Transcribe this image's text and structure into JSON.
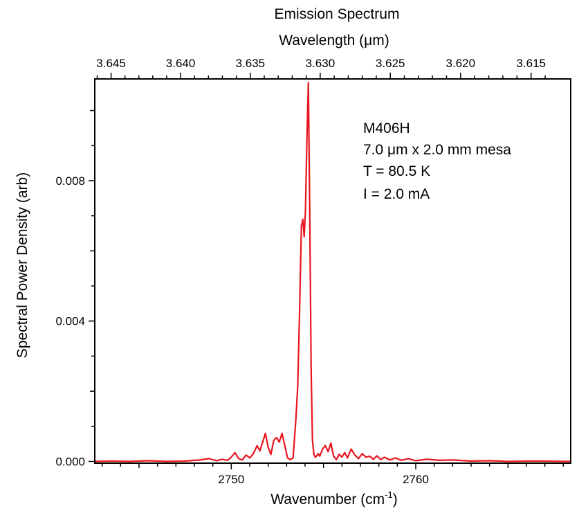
{
  "chart_data": {
    "type": "line",
    "title": "Emission Spectrum",
    "xlabel": "Wavenumber (cm",
    "xlabel_sup": "-1",
    "xlabel_close": ")",
    "ylabel": "Spectral Power Density (arb)",
    "top_xlabel": "Wavelength (μm)",
    "xlim": [
      2742.6,
      2768.4
    ],
    "ylim": [
      -5e-05,
      0.0109
    ],
    "x_ticks": [
      {
        "value": 2750,
        "label": "2750"
      },
      {
        "value": 2760,
        "label": "2760"
      }
    ],
    "y_ticks": [
      {
        "value": 0.0,
        "label": "0.000"
      },
      {
        "value": 0.004,
        "label": "0.004"
      },
      {
        "value": 0.008,
        "label": "0.008"
      }
    ],
    "top_ticks": [
      {
        "value": 3.645,
        "label": "3.645"
      },
      {
        "value": 3.64,
        "label": "3.640"
      },
      {
        "value": 3.635,
        "label": "3.635"
      },
      {
        "value": 3.63,
        "label": "3.630"
      },
      {
        "value": 3.625,
        "label": "3.625"
      },
      {
        "value": 3.62,
        "label": "3.620"
      },
      {
        "value": 3.615,
        "label": "3.615"
      }
    ],
    "annotations": [
      "M406H",
      "7.0 μm x 2.0 mm mesa",
      "T = 80.5 K",
      "I = 2.0 mA"
    ],
    "series": [
      {
        "color": "#e8141e",
        "x": [
          2742.6,
          2743.5,
          2744.5,
          2745.5,
          2746.5,
          2747.5,
          2748.3,
          2748.8,
          2749.2,
          2749.5,
          2749.8,
          2750.0,
          2750.2,
          2750.4,
          2750.6,
          2750.8,
          2751.0,
          2751.2,
          2751.4,
          2751.55,
          2751.7,
          2751.85,
          2752.0,
          2752.15,
          2752.3,
          2752.45,
          2752.6,
          2752.75,
          2752.9,
          2753.05,
          2753.2,
          2753.35,
          2753.5,
          2753.6,
          2753.7,
          2753.8,
          2753.88,
          2753.95,
          2754.02,
          2754.1,
          2754.18,
          2754.25,
          2754.33,
          2754.4,
          2754.48,
          2754.55,
          2754.62,
          2754.7,
          2754.8,
          2754.95,
          2755.1,
          2755.25,
          2755.4,
          2755.55,
          2755.7,
          2755.85,
          2756.0,
          2756.15,
          2756.3,
          2756.5,
          2756.7,
          2756.9,
          2757.1,
          2757.3,
          2757.5,
          2757.7,
          2757.9,
          2758.1,
          2758.3,
          2758.6,
          2758.9,
          2759.2,
          2759.6,
          2760.0,
          2760.6,
          2761.3,
          2762.0,
          2763.0,
          2764.0,
          2765.0,
          2766.5,
          2768.4
        ],
        "y": [
          0.0,
          1e-05,
          0.0,
          2e-05,
          0.0,
          1e-05,
          4e-05,
          8e-05,
          2e-05,
          6e-05,
          3e-05,
          0.00012,
          0.00025,
          8e-05,
          4e-05,
          0.00018,
          0.0001,
          0.00022,
          0.00045,
          0.0003,
          0.00055,
          0.0008,
          0.0004,
          0.0002,
          0.0006,
          0.00068,
          0.00055,
          0.0008,
          0.00045,
          0.0001,
          5e-05,
          0.0001,
          0.0012,
          0.0021,
          0.0042,
          0.0067,
          0.0069,
          0.0064,
          0.0071,
          0.0092,
          0.0108,
          0.0072,
          0.0026,
          0.0006,
          0.0002,
          0.00012,
          0.00015,
          0.00022,
          0.00015,
          0.00035,
          0.00045,
          0.00028,
          0.00052,
          0.00015,
          5e-05,
          0.0002,
          0.00012,
          0.00025,
          0.0001,
          0.00035,
          0.00018,
          8e-05,
          0.00022,
          0.00012,
          0.00015,
          6e-05,
          0.00016,
          5e-05,
          0.00012,
          4e-05,
          0.0001,
          3e-05,
          8e-05,
          2e-05,
          6e-05,
          3e-05,
          4e-05,
          1e-05,
          2e-05,
          0.0,
          1e-05,
          0.0
        ]
      }
    ],
    "grid": false
  }
}
